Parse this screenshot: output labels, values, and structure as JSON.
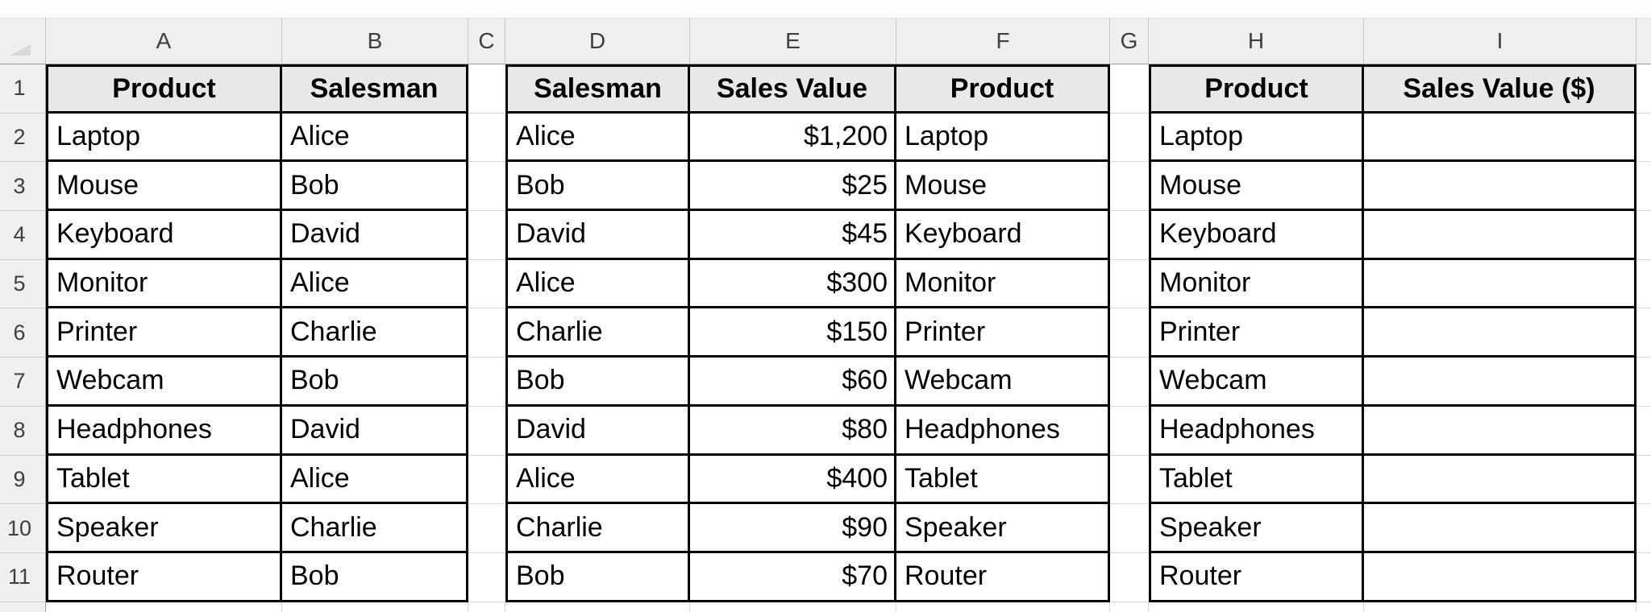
{
  "colors": {
    "table_border": "#000000",
    "header_cell_fill": "#e8e8e8",
    "band_fill": "#efefef",
    "gridline": "#d9d9d9"
  },
  "column_band": {
    "letters": [
      "A",
      "B",
      "C",
      "D",
      "E",
      "F",
      "G",
      "H",
      "I"
    ]
  },
  "row1": {
    "num": "1",
    "a": "Product",
    "b": "Salesman",
    "d": "Salesman",
    "e": "Sales Value",
    "f": "Product",
    "h": "Product",
    "i": "Sales Value ($)"
  },
  "rows": [
    {
      "num": "2",
      "a": "Laptop",
      "b": "Alice",
      "d": "Alice",
      "e": "$1,200",
      "f": "Laptop",
      "h": "Laptop",
      "i": ""
    },
    {
      "num": "3",
      "a": "Mouse",
      "b": "Bob",
      "d": "Bob",
      "e": "$25",
      "f": "Mouse",
      "h": "Mouse",
      "i": ""
    },
    {
      "num": "4",
      "a": "Keyboard",
      "b": "David",
      "d": "David",
      "e": "$45",
      "f": "Keyboard",
      "h": "Keyboard",
      "i": ""
    },
    {
      "num": "5",
      "a": "Monitor",
      "b": "Alice",
      "d": "Alice",
      "e": "$300",
      "f": "Monitor",
      "h": "Monitor",
      "i": ""
    },
    {
      "num": "6",
      "a": "Printer",
      "b": "Charlie",
      "d": "Charlie",
      "e": "$150",
      "f": "Printer",
      "h": "Printer",
      "i": ""
    },
    {
      "num": "7",
      "a": "Webcam",
      "b": "Bob",
      "d": "Bob",
      "e": "$60",
      "f": "Webcam",
      "h": "Webcam",
      "i": ""
    },
    {
      "num": "8",
      "a": "Headphones",
      "b": "David",
      "d": "David",
      "e": "$80",
      "f": "Headphones",
      "h": "Headphones",
      "i": ""
    },
    {
      "num": "9",
      "a": "Tablet",
      "b": "Alice",
      "d": "Alice",
      "e": "$400",
      "f": "Tablet",
      "h": "Tablet",
      "i": ""
    },
    {
      "num": "10",
      "a": "Speaker",
      "b": "Charlie",
      "d": "Charlie",
      "e": "$90",
      "f": "Speaker",
      "h": "Speaker",
      "i": ""
    },
    {
      "num": "11",
      "a": "Router",
      "b": "Bob",
      "d": "Bob",
      "e": "$70",
      "f": "Router",
      "h": "Router",
      "i": ""
    }
  ]
}
